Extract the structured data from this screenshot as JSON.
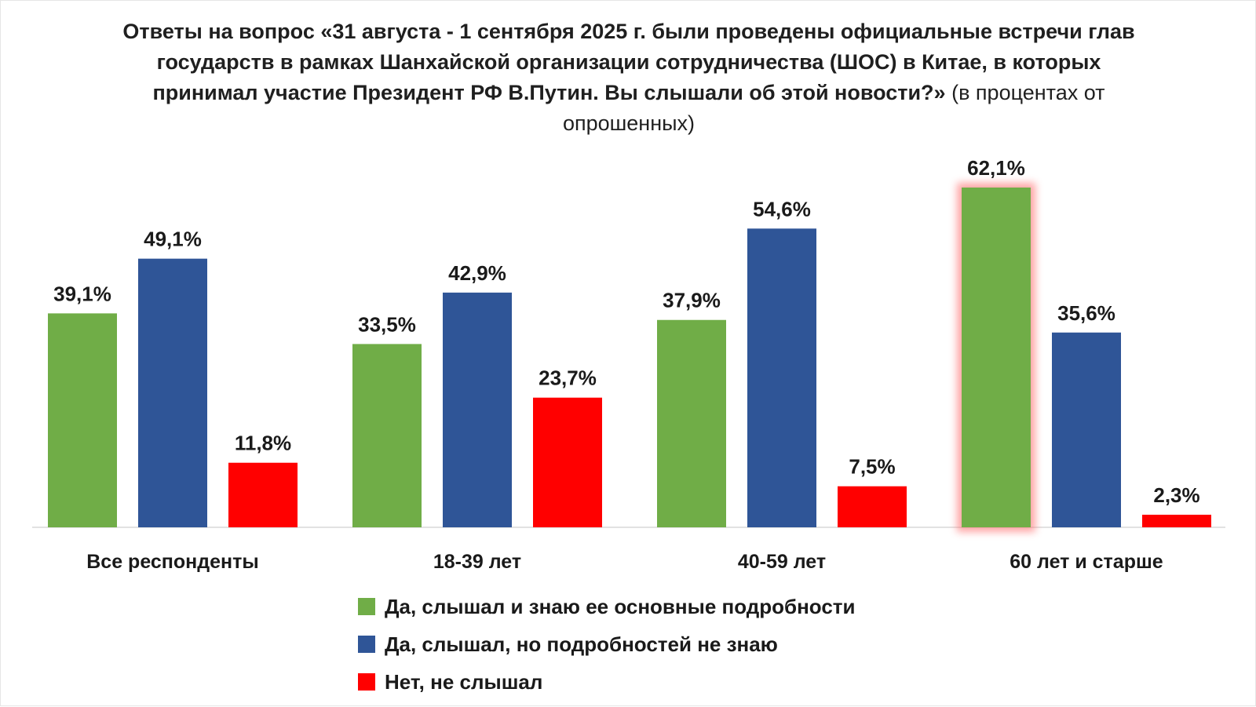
{
  "chart_data": {
    "type": "bar",
    "title": "Ответы на вопрос «31 августа - 1 сентября 2025 г. были проведены официальные встречи глав государств в рамках Шанхайской организации сотрудничества (ШОС) в Китае, в которых принимал участие Президент РФ В.Путин. Вы слышали об этой новости?»",
    "subtitle": "(в процентах от опрошенных)",
    "categories": [
      "Все респонденты",
      "18-39 лет",
      "40-59 лет",
      "60 лет и старше"
    ],
    "series": [
      {
        "name": "Да, слышал и знаю ее основные подробности",
        "color": "#70ad47",
        "values": [
          39.1,
          33.5,
          37.9,
          62.1
        ],
        "labels": [
          "39,1%",
          "33,5%",
          "37,9%",
          "62,1%"
        ]
      },
      {
        "name": "Да, слышал, но подробностей не знаю",
        "color": "#2f5597",
        "values": [
          49.1,
          42.9,
          54.6,
          35.6
        ],
        "labels": [
          "49,1%",
          "42,9%",
          "54,6%",
          "35,6%"
        ]
      },
      {
        "name": "Нет, не слышал",
        "color": "#ff0000",
        "values": [
          11.8,
          23.7,
          7.5,
          2.3
        ],
        "labels": [
          "11,8%",
          "23,7%",
          "7,5%",
          "2,3%"
        ]
      }
    ],
    "highlight": {
      "series": 0,
      "category": 3,
      "glow_color": "#ff5c5c"
    },
    "ylim": [
      0,
      62.1
    ],
    "grid": false,
    "legend_position": "bottom-center"
  }
}
